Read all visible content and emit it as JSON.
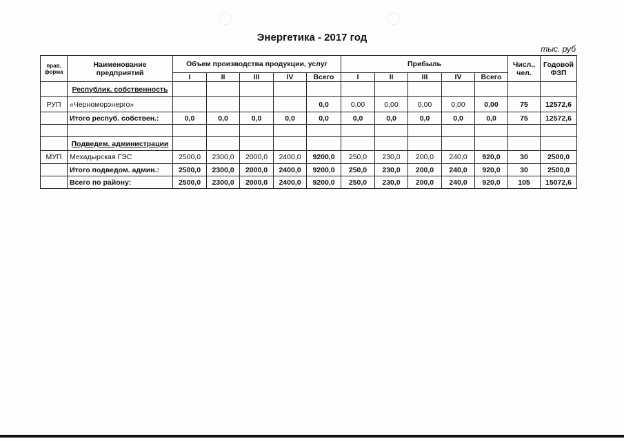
{
  "title": "Энергетика - 2017 год",
  "unit": "тыс. руб",
  "headers": {
    "form": "прав. форма",
    "name": "Наименование предприятий",
    "volume": "Объем производства продукции, услуг",
    "profit": "Прибыль",
    "staff": "Числ., чел.",
    "fzp": "Годовой ФЗП",
    "quarters": [
      "I",
      "II",
      "III",
      "IV",
      "Всего"
    ]
  },
  "rows": [
    {
      "form": "",
      "name": "Республик. собственность",
      "type": "section",
      "cells": [
        "",
        "",
        "",
        "",
        "",
        "",
        "",
        "",
        "",
        "",
        "",
        ""
      ]
    },
    {
      "form": "РУП",
      "name": "«Черноморэнерго»",
      "type": "item",
      "cells": [
        "",
        "",
        "",
        "",
        "0,0",
        "0,00",
        "0,00",
        "0,00",
        "0,00",
        "0,00",
        "75",
        "12572,6"
      ]
    },
    {
      "form": "",
      "name": "Итого респуб. собствен.:",
      "type": "total",
      "cells": [
        "0,0",
        "0,0",
        "0,0",
        "0,0",
        "0,0",
        "0,0",
        "0,0",
        "0,0",
        "0,0",
        "0,0",
        "75",
        "12572,6"
      ]
    },
    {
      "form": "",
      "name": "",
      "type": "blank",
      "cells": [
        "",
        "",
        "",
        "",
        "",
        "",
        "",
        "",
        "",
        "",
        "",
        ""
      ]
    },
    {
      "form": "",
      "name": "Подведем. администрации",
      "type": "section",
      "cells": [
        "",
        "",
        "",
        "",
        "",
        "",
        "",
        "",
        "",
        "",
        "",
        ""
      ]
    },
    {
      "form": "МУП",
      "name": "Мехадырская ГЭС",
      "type": "item",
      "cells": [
        "2500,0",
        "2300,0",
        "2000,0",
        "2400,0",
        "9200,0",
        "250,0",
        "230,0",
        "200,0",
        "240,0",
        "920,0",
        "30",
        "2500,0"
      ]
    },
    {
      "form": "",
      "name": "Итого подведом. админ.:",
      "type": "total",
      "cells": [
        "2500,0",
        "2300,0",
        "2000,0",
        "2400,0",
        "9200,0",
        "250,0",
        "230,0",
        "200,0",
        "240,0",
        "920,0",
        "30",
        "2500,0"
      ]
    },
    {
      "form": "",
      "name": "Всего по району:",
      "type": "total",
      "cells": [
        "2500,0",
        "2300,0",
        "2000,0",
        "2400,0",
        "9200,0",
        "250,0",
        "230,0",
        "200,0",
        "240,0",
        "920,0",
        "105",
        "15072,6"
      ]
    }
  ]
}
